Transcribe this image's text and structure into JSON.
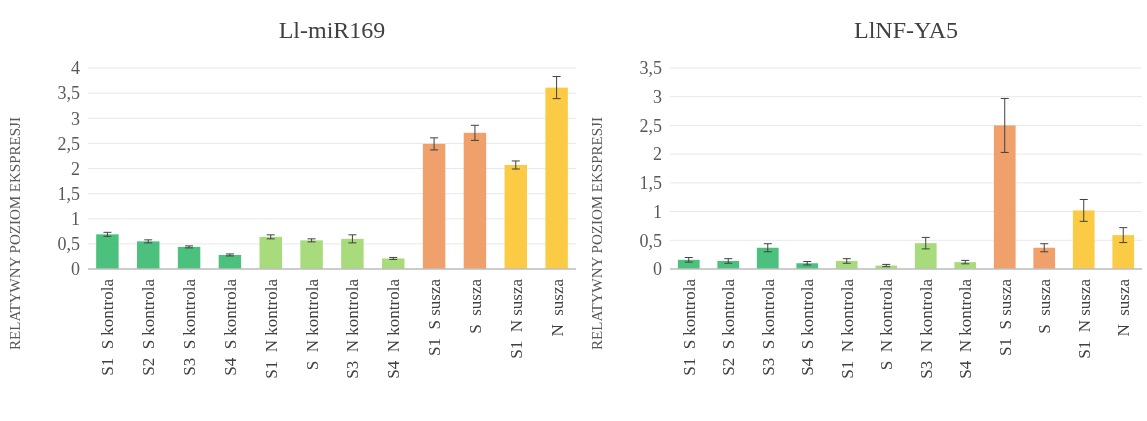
{
  "chart_data": [
    {
      "type": "bar",
      "title": "Ll-miR169",
      "ylabel": "RELATYWNY POZIOM EKSPRESJI",
      "categories": [
        "S1  S kontrola",
        "S2  S kontrola",
        "S3  S kontrola",
        "S4  S kontrola",
        "S1  N kontrola",
        "S  N kontrola",
        "S3  N kontrola",
        "S4  N kontrola",
        "S1  S susza",
        "S  susza",
        "S1  N susza",
        "N  susza"
      ],
      "values": [
        0.69,
        0.55,
        0.44,
        0.28,
        0.64,
        0.57,
        0.6,
        0.21,
        2.49,
        2.71,
        2.07,
        3.61
      ],
      "errors": [
        0.04,
        0.03,
        0.02,
        0.02,
        0.04,
        0.03,
        0.08,
        0.02,
        0.12,
        0.15,
        0.08,
        0.22
      ],
      "colors": [
        "#4cc17e",
        "#4cc17e",
        "#4cc17e",
        "#4cc17e",
        "#a8db7c",
        "#a8db7c",
        "#a8db7c",
        "#a8db7c",
        "#f0a06a",
        "#f0a06a",
        "#fccb45",
        "#fccb45"
      ],
      "ylim": [
        0,
        4
      ],
      "yticks": [
        0,
        {
          "value": 0.5,
          "label": "0,5"
        },
        1,
        {
          "value": 1.5,
          "label": "1,5"
        },
        2,
        {
          "value": 2.5,
          "label": "2,5"
        },
        3,
        {
          "value": 3.5,
          "label": "3,5"
        },
        4
      ],
      "grid": "y"
    },
    {
      "type": "bar",
      "title": "LlNF-YA5",
      "ylabel": "RELATYWNY POZIOM EKSPRESJI",
      "categories": [
        "S1  S kontrola",
        "S2  S kontrola",
        "S3  S kontrola",
        "S4  S kontrola",
        "S1  N kontrola",
        "S  N kontrola",
        "S3  N kontrola",
        "S4  N kontrola",
        "S1  S susza",
        "S  susza",
        "S1  N susza",
        "N  susza"
      ],
      "values": [
        0.16,
        0.14,
        0.37,
        0.1,
        0.14,
        0.06,
        0.45,
        0.12,
        2.5,
        0.37,
        1.02,
        0.59
      ],
      "errors": [
        0.04,
        0.04,
        0.07,
        0.03,
        0.04,
        0.02,
        0.1,
        0.03,
        0.47,
        0.07,
        0.19,
        0.13
      ],
      "colors": [
        "#4cc17e",
        "#4cc17e",
        "#4cc17e",
        "#4cc17e",
        "#a8db7c",
        "#a8db7c",
        "#a8db7c",
        "#a8db7c",
        "#f0a06a",
        "#f0a06a",
        "#fccb45",
        "#fccb45"
      ],
      "ylim": [
        0,
        3.5
      ],
      "yticks": [
        0,
        {
          "value": 0.5,
          "label": "0,5"
        },
        1,
        {
          "value": 1.5,
          "label": "1,5"
        },
        2,
        {
          "value": 2.5,
          "label": "2,5"
        },
        3,
        {
          "value": 3.5,
          "label": "3,5"
        }
      ],
      "grid": "y"
    }
  ]
}
